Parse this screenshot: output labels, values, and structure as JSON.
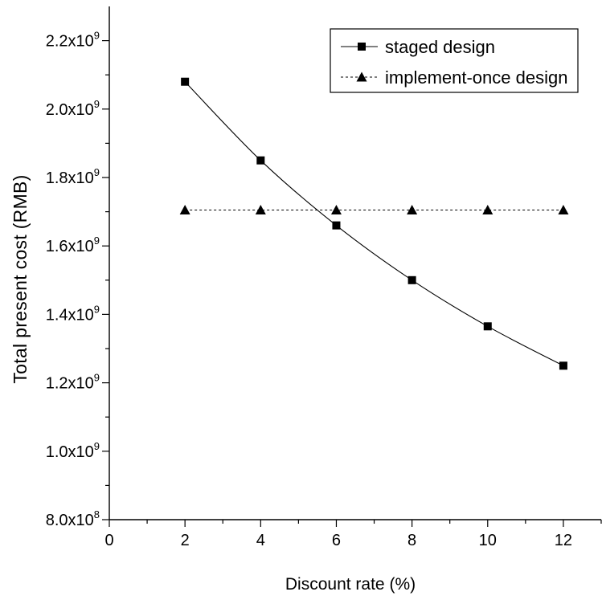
{
  "chart_data": {
    "type": "line",
    "title": "",
    "xlabel": "Discount rate (%)",
    "ylabel": "Total present cost (RMB)",
    "xlim": [
      0,
      13
    ],
    "ylim": [
      800000000,
      2300000000
    ],
    "x_ticks": [
      0,
      2,
      4,
      6,
      8,
      10,
      12
    ],
    "y_ticks": [
      {
        "value": 800000000,
        "mantissa": "8.0x10",
        "exp": "8"
      },
      {
        "value": 1000000000,
        "mantissa": "1.0x10",
        "exp": "9"
      },
      {
        "value": 1200000000,
        "mantissa": "1.2x10",
        "exp": "9"
      },
      {
        "value": 1400000000,
        "mantissa": "1.4x10",
        "exp": "9"
      },
      {
        "value": 1600000000,
        "mantissa": "1.6x10",
        "exp": "9"
      },
      {
        "value": 1800000000,
        "mantissa": "1.8x10",
        "exp": "9"
      },
      {
        "value": 2000000000,
        "mantissa": "2.0x10",
        "exp": "9"
      },
      {
        "value": 2200000000,
        "mantissa": "2.2x10",
        "exp": "9"
      }
    ],
    "grid": false,
    "legend_position": "top-right",
    "series": [
      {
        "name": "staged design",
        "marker": "square",
        "line_style": "solid-smooth",
        "color": "#000000",
        "x": [
          2,
          4,
          6,
          8,
          10,
          12
        ],
        "y": [
          2080000000,
          1850000000,
          1660000000,
          1500000000,
          1365000000,
          1250000000
        ]
      },
      {
        "name": "implement-once design",
        "marker": "triangle",
        "line_style": "dashed",
        "color": "#000000",
        "x": [
          2,
          4,
          6,
          8,
          10,
          12
        ],
        "y": [
          1705000000,
          1705000000,
          1705000000,
          1705000000,
          1705000000,
          1705000000
        ]
      }
    ]
  }
}
